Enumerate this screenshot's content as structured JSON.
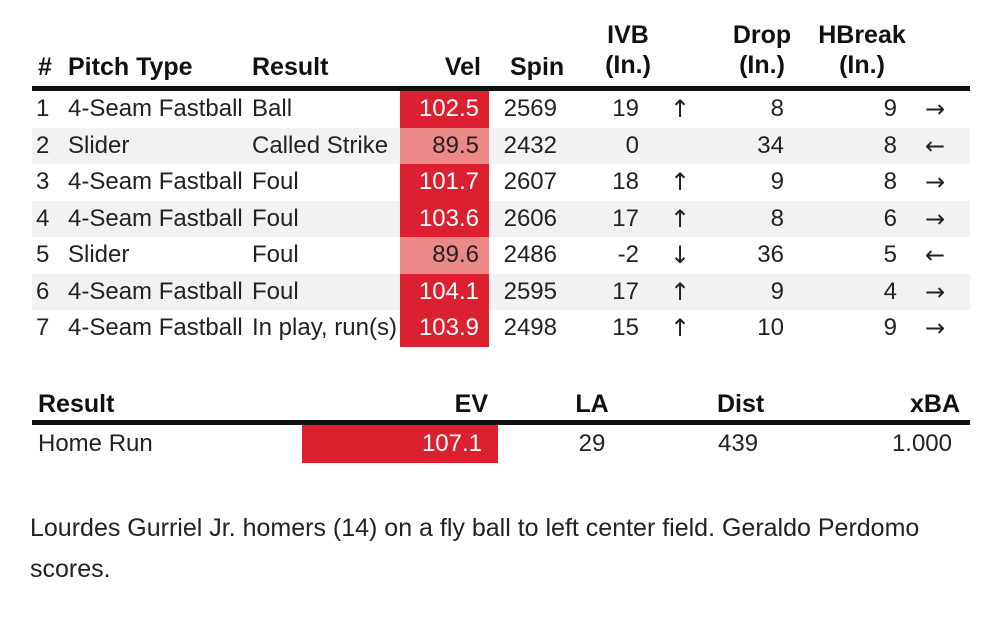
{
  "pitch_table": {
    "headers": {
      "num": "#",
      "pitch_type": "Pitch Type",
      "result": "Result",
      "vel": "Vel",
      "spin": "Spin",
      "ivb_1": "IVB",
      "ivb_2": "(In.)",
      "drop_1": "Drop",
      "drop_2": "(In.)",
      "hbreak_1": "HBreak",
      "hbreak_2": "(In.)"
    },
    "rows": [
      {
        "num": "1",
        "pitch_type": "4-Seam Fastball",
        "result": "Ball",
        "vel": "102.5",
        "spin": "2569",
        "ivb": "19",
        "ivb_arrow": "↑",
        "drop": "8",
        "hbreak": "9",
        "hbreak_arrow": "→"
      },
      {
        "num": "2",
        "pitch_type": "Slider",
        "result": "Called Strike",
        "vel": "89.5",
        "spin": "2432",
        "ivb": "0",
        "ivb_arrow": "",
        "drop": "34",
        "hbreak": "8",
        "hbreak_arrow": "←"
      },
      {
        "num": "3",
        "pitch_type": "4-Seam Fastball",
        "result": "Foul",
        "vel": "101.7",
        "spin": "2607",
        "ivb": "18",
        "ivb_arrow": "↑",
        "drop": "9",
        "hbreak": "8",
        "hbreak_arrow": "→"
      },
      {
        "num": "4",
        "pitch_type": "4-Seam Fastball",
        "result": "Foul",
        "vel": "103.6",
        "spin": "2606",
        "ivb": "17",
        "ivb_arrow": "↑",
        "drop": "8",
        "hbreak": "6",
        "hbreak_arrow": "→"
      },
      {
        "num": "5",
        "pitch_type": "Slider",
        "result": "Foul",
        "vel": "89.6",
        "spin": "2486",
        "ivb": "-2",
        "ivb_arrow": "↓",
        "drop": "36",
        "hbreak": "5",
        "hbreak_arrow": "←"
      },
      {
        "num": "6",
        "pitch_type": "4-Seam Fastball",
        "result": "Foul",
        "vel": "104.1",
        "spin": "2595",
        "ivb": "17",
        "ivb_arrow": "↑",
        "drop": "9",
        "hbreak": "4",
        "hbreak_arrow": "→"
      },
      {
        "num": "7",
        "pitch_type": "4-Seam Fastball",
        "result": "In play, run(s)",
        "vel": "103.9",
        "spin": "2498",
        "ivb": "15",
        "ivb_arrow": "↑",
        "drop": "10",
        "hbreak": "9",
        "hbreak_arrow": "→"
      }
    ]
  },
  "result_table": {
    "headers": {
      "result": "Result",
      "ev": "EV",
      "la": "LA",
      "dist": "Dist",
      "xba": "xBA"
    },
    "row": {
      "result": "Home Run",
      "ev": "107.1",
      "la": "29",
      "dist": "439",
      "xba": "1.000"
    }
  },
  "description": "Lourdes Gurriel Jr. homers (14) on a fly ball to left center field. Geraldo Perdomo scores.",
  "colors": {
    "vel_fast": "#dc2030",
    "vel_slow": "#eb8888",
    "ev_bar": "#dc2030"
  }
}
